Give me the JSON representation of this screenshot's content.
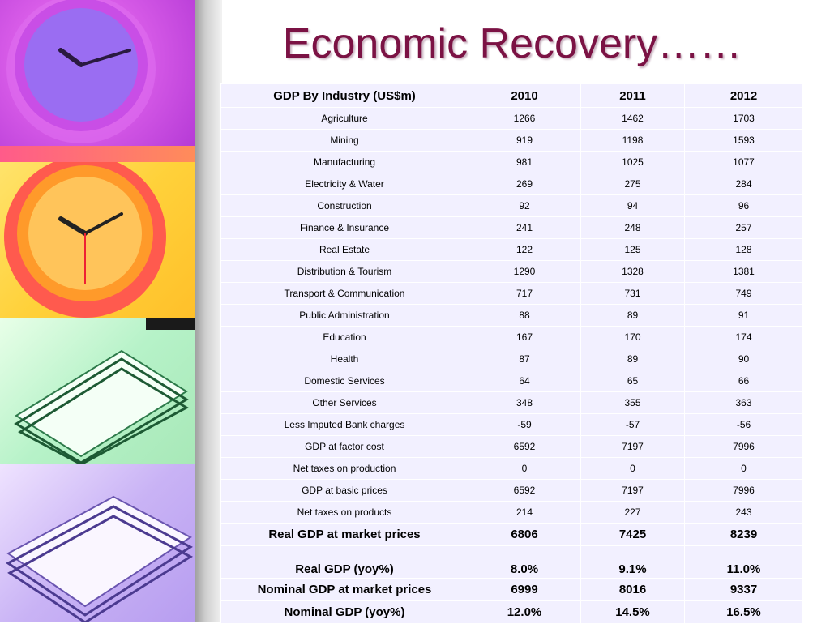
{
  "title": "Economic Recovery……",
  "table": {
    "headers": [
      "GDP By Industry (US$m)",
      "2010",
      "2011",
      "2012"
    ],
    "rows": [
      [
        "Agriculture",
        "1266",
        "1462",
        "1703"
      ],
      [
        "Mining",
        "919",
        "1198",
        "1593"
      ],
      [
        "Manufacturing",
        "981",
        "1025",
        "1077"
      ],
      [
        "Electricity & Water",
        "269",
        "275",
        "284"
      ],
      [
        "Construction",
        "92",
        "94",
        "96"
      ],
      [
        "Finance & Insurance",
        "241",
        "248",
        "257"
      ],
      [
        "Real Estate",
        "122",
        "125",
        "128"
      ],
      [
        "Distribution & Tourism",
        "1290",
        "1328",
        "1381"
      ],
      [
        "Transport & Communication",
        "717",
        "731",
        "749"
      ],
      [
        "Public Administration",
        "88",
        "89",
        "91"
      ],
      [
        "Education",
        "167",
        "170",
        "174"
      ],
      [
        "Health",
        "87",
        "89",
        "90"
      ],
      [
        "Domestic Services",
        "64",
        "65",
        "66"
      ],
      [
        "Other Services",
        "348",
        "355",
        "363"
      ],
      [
        "Less Imputed Bank charges",
        "-59",
        "-57",
        "-56"
      ],
      [
        "GDP at factor cost",
        "6592",
        "7197",
        "7996"
      ],
      [
        "Net taxes on production",
        "0",
        "0",
        "0"
      ],
      [
        "GDP at basic prices",
        "6592",
        "7197",
        "7996"
      ],
      [
        "Net taxes on products",
        "214",
        "227",
        "243"
      ]
    ],
    "summary_rows": [
      [
        "Real GDP at market prices",
        "6806",
        "7425",
        "8239"
      ],
      [
        "Real GDP (yoy%)",
        "8.0%",
        "9.1%",
        "11.0%"
      ],
      [
        "Nominal GDP at market prices",
        "6999",
        "8016",
        "9337"
      ],
      [
        "Nominal GDP (yoy%)",
        "12.0%",
        "14.5%",
        "16.5%"
      ]
    ]
  },
  "colors": {
    "title": "#7b1244",
    "table_bg": "#f2f0ff"
  }
}
